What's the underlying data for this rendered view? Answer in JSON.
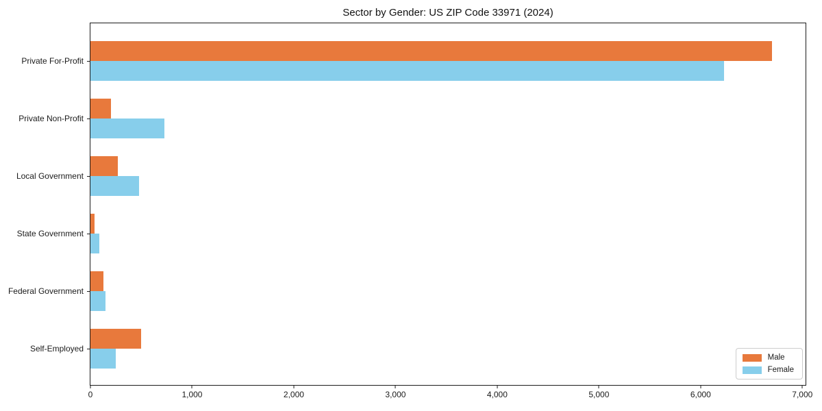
{
  "chart_data": {
    "type": "bar",
    "orientation": "horizontal",
    "title": "Sector by Gender: US ZIP Code 33971 (2024)",
    "xlabel": "",
    "ylabel": "",
    "categories": [
      "Private For-Profit",
      "Private Non-Profit",
      "Local Government",
      "State Government",
      "Federal Government",
      "Self-Employed"
    ],
    "series": [
      {
        "name": "Male",
        "color": "#E8793C",
        "values": [
          6700,
          200,
          270,
          40,
          130,
          500
        ]
      },
      {
        "name": "Female",
        "color": "#87CEEB",
        "values": [
          6230,
          725,
          480,
          90,
          150,
          250
        ]
      }
    ],
    "xlim": [
      0,
      7045
    ],
    "xticks": [
      0,
      1000,
      2000,
      3000,
      4000,
      5000,
      6000,
      7000
    ],
    "xtick_labels": [
      "0",
      "1,000",
      "2,000",
      "3,000",
      "4,000",
      "5,000",
      "6,000",
      "7,000"
    ],
    "grid": false,
    "legend_position": "lower right",
    "plot_border_color": "#1a1a1a",
    "background_color": "#ffffff"
  }
}
